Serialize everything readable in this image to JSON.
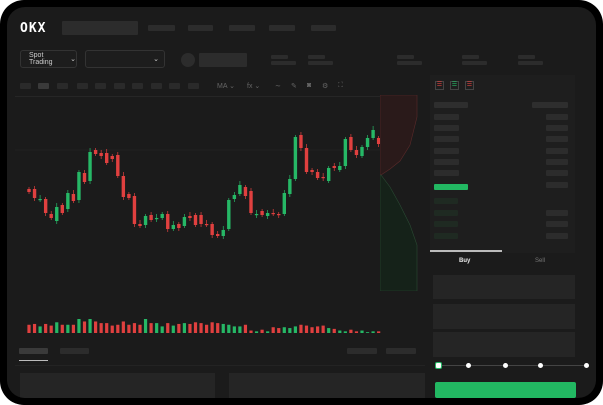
{
  "header": {
    "logo": "OKX",
    "nav_items": [
      "",
      "",
      "",
      "",
      ""
    ]
  },
  "market_bar": {
    "mode_button": "Spot Trading",
    "mode_chevron": "⌄",
    "pair_chevron": "⌄"
  },
  "toolbar": {
    "indicator_1": "MA",
    "indicator_2": "fx",
    "chevron": "⌄",
    "icons": [
      "line-tool-icon",
      "pencil-icon",
      "camera-icon",
      "gear-icon",
      "fullscreen-icon"
    ]
  },
  "trade_panel": {
    "tabs": [
      "Buy",
      "Sell"
    ],
    "active_tab": "Buy",
    "slider_percent": 0,
    "slider_stops": [
      0,
      25,
      50,
      75,
      100
    ]
  },
  "colors": {
    "up": "#26b866",
    "down": "#e0403f",
    "background": "#1b1b1b",
    "primary_button": "#22b862"
  },
  "chart_data": {
    "type": "candlestick",
    "open": [
      58,
      58,
      47,
      48,
      33,
      26,
      42,
      38,
      53,
      47,
      74,
      66,
      97,
      94,
      94,
      91,
      92,
      71,
      53,
      51,
      23,
      22,
      32,
      28,
      29,
      33,
      18,
      23,
      21,
      31,
      32,
      32,
      23,
      23,
      13,
      11,
      18,
      48,
      53,
      60,
      56,
      32,
      36,
      31,
      34,
      33,
      33,
      53,
      68,
      112,
      99,
      77,
      75,
      70,
      66,
      81,
      77,
      81,
      110,
      97,
      91,
      100,
      109,
      109,
      101
    ],
    "close": [
      55,
      49,
      48,
      34,
      29,
      40,
      34,
      54,
      46,
      75,
      65,
      95,
      93,
      91,
      84,
      88,
      71,
      50,
      49,
      23,
      21,
      31,
      27,
      29,
      33,
      18,
      22,
      19,
      30,
      29,
      22,
      23,
      22,
      12,
      11,
      17,
      47,
      52,
      62,
      51,
      34,
      33,
      32,
      34,
      33,
      32,
      54,
      68,
      110,
      99,
      75,
      75,
      69,
      69,
      79,
      79,
      81,
      108,
      97,
      92,
      100,
      109,
      117,
      103,
      107
    ],
    "volume": [
      10,
      11,
      8,
      11,
      9,
      13,
      10,
      10,
      10,
      17,
      14,
      17,
      14,
      12,
      12,
      9,
      10,
      14,
      10,
      12,
      10,
      17,
      12,
      12,
      8,
      12,
      9,
      11,
      12,
      11,
      13,
      12,
      10,
      13,
      12,
      11,
      10,
      8,
      8,
      10,
      3,
      2,
      4,
      2,
      7,
      6,
      7,
      6,
      8,
      10,
      9,
      7,
      8,
      9,
      6,
      5,
      3,
      2,
      4,
      2,
      3,
      1,
      2,
      2,
      3
    ]
  }
}
